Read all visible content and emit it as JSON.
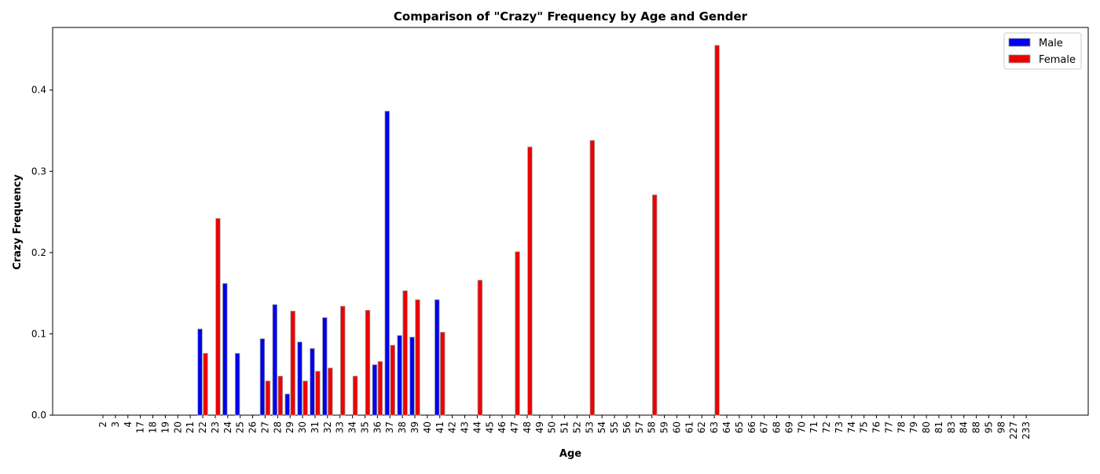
{
  "chart_data": {
    "type": "bar",
    "title": "Comparison of \"Crazy\" Frequency by Age and Gender",
    "xlabel": "Age",
    "ylabel": "Crazy Frequency",
    "ylim": [
      0,
      0.477
    ],
    "yticks": [
      "0.0",
      "0.1",
      "0.2",
      "0.3",
      "0.4"
    ],
    "grid": false,
    "legend_position": "top-right",
    "categories": [
      "2",
      "3",
      "4",
      "17",
      "18",
      "19",
      "20",
      "21",
      "22",
      "23",
      "24",
      "25",
      "26",
      "27",
      "28",
      "29",
      "30",
      "31",
      "32",
      "33",
      "34",
      "35",
      "36",
      "37",
      "38",
      "39",
      "40",
      "41",
      "42",
      "43",
      "44",
      "45",
      "46",
      "47",
      "48",
      "49",
      "50",
      "51",
      "52",
      "53",
      "54",
      "55",
      "56",
      "57",
      "58",
      "59",
      "60",
      "61",
      "62",
      "63",
      "64",
      "65",
      "66",
      "67",
      "68",
      "69",
      "70",
      "71",
      "72",
      "73",
      "74",
      "75",
      "76",
      "77",
      "78",
      "79",
      "80",
      "81",
      "83",
      "84",
      "88",
      "95",
      "98",
      "227",
      "233"
    ],
    "series": [
      {
        "name": "Male",
        "color": "#0000ee",
        "values": [
          0,
          0,
          0,
          0,
          0,
          0,
          0,
          0,
          0.106,
          0,
          0.162,
          0.076,
          0,
          0.094,
          0.136,
          0.026,
          0.09,
          0.082,
          0.12,
          0,
          0,
          0,
          0.062,
          0.374,
          0.098,
          0.096,
          0,
          0.142,
          0,
          0,
          0,
          0,
          0,
          0,
          0,
          0,
          0,
          0,
          0,
          0,
          0,
          0,
          0,
          0,
          0,
          0,
          0,
          0,
          0,
          0,
          0,
          0,
          0,
          0,
          0,
          0,
          0,
          0,
          0,
          0,
          0,
          0,
          0,
          0,
          0,
          0,
          0,
          0,
          0,
          0,
          0,
          0,
          0,
          0,
          0
        ]
      },
      {
        "name": "Female",
        "color": "#ee0000",
        "values": [
          0,
          0,
          0,
          0,
          0,
          0,
          0,
          0,
          0.076,
          0.242,
          0,
          0,
          0,
          0.042,
          0.048,
          0.128,
          0.042,
          0.054,
          0.058,
          0.134,
          0.048,
          0.129,
          0.066,
          0.086,
          0.153,
          0.142,
          0,
          0.102,
          0,
          0,
          0.166,
          0,
          0,
          0.201,
          0.33,
          0,
          0,
          0,
          0,
          0.338,
          0,
          0,
          0,
          0,
          0.271,
          0,
          0,
          0,
          0,
          0.455,
          0,
          0,
          0,
          0,
          0,
          0,
          0,
          0,
          0,
          0,
          0,
          0,
          0,
          0,
          0,
          0,
          0,
          0,
          0,
          0,
          0,
          0,
          0,
          0,
          0
        ]
      }
    ]
  }
}
